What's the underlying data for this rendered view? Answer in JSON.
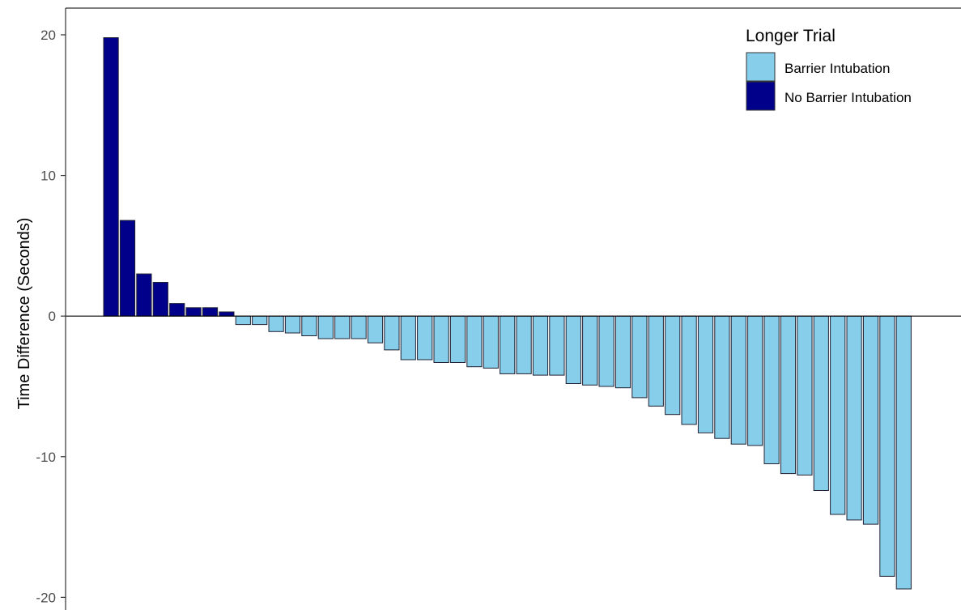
{
  "chart_data": {
    "type": "bar",
    "title": "",
    "xlabel": "",
    "ylabel": "Time Difference (Seconds)",
    "ylim": [
      -20.9,
      21.9
    ],
    "yticks": [
      20,
      10,
      0,
      -10,
      -20
    ],
    "grid": false,
    "legend": {
      "title": "Longer Trial",
      "placement": "top-right",
      "entries": [
        {
          "name": "Barrier Intubation",
          "color": "#87ceeb"
        },
        {
          "name": "No Barrier Intubation",
          "color": "#00008b"
        }
      ]
    },
    "series": [
      {
        "name": "No Barrier Intubation",
        "color": "#00008b",
        "values": [
          19.8,
          6.8,
          3.0,
          2.4,
          0.9,
          0.6,
          0.6,
          0.3
        ]
      },
      {
        "name": "Barrier Intubation",
        "color": "#87ceeb",
        "values": [
          -0.6,
          -0.6,
          -1.1,
          -1.2,
          -1.4,
          -1.6,
          -1.6,
          -1.6,
          -1.9,
          -2.4,
          -3.1,
          -3.1,
          -3.3,
          -3.3,
          -3.6,
          -3.7,
          -4.1,
          -4.1,
          -4.2,
          -4.2,
          -4.8,
          -4.9,
          -5.0,
          -5.1,
          -5.8,
          -6.4,
          -7.0,
          -7.7,
          -8.3,
          -8.7,
          -9.1,
          -9.2,
          -10.5,
          -11.2,
          -11.3,
          -12.4,
          -14.1,
          -14.5,
          -14.8,
          -18.5,
          -19.4
        ]
      }
    ]
  }
}
